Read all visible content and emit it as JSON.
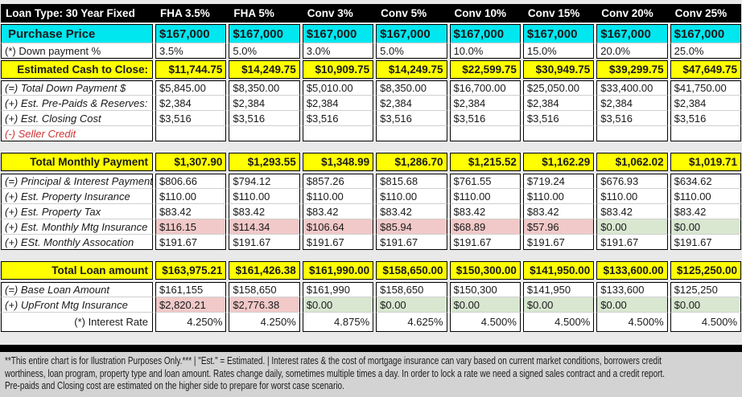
{
  "header": {
    "label": "Loan Type: 30 Year Fixed",
    "columns": [
      "FHA 3.5%",
      "FHA 5%",
      "Conv 3%",
      "Conv 5%",
      "Conv 10%",
      "Conv 15%",
      "Conv 20%",
      "Conv 25%"
    ]
  },
  "colors": {
    "header_bg": "#000000",
    "header_text": "#FFFFFF",
    "highlight_cyan": "#00E7F0",
    "highlight_yellow": "#FFFF00",
    "cell_pink": "#F1C9C8",
    "cell_green": "#D9E7D1",
    "red_label": "#CC3333"
  },
  "sections": [
    {
      "name": "price",
      "gap": 2,
      "rows": [
        {
          "id": "purchase-price",
          "label": "Purchase Price",
          "label_class": "lbl-bold",
          "row_class": "rt-cyan",
          "values": [
            "$167,000",
            "$167,000",
            "$167,000",
            "$167,000",
            "$167,000",
            "$167,000",
            "$167,000",
            "$167,000"
          ]
        },
        {
          "id": "down-payment-pct",
          "label": "(*) Down payment %",
          "label_class": "lbl-plain",
          "row_class": "rt-plain",
          "values": [
            "3.5%",
            "5.0%",
            "3.0%",
            "5.0%",
            "10.0%",
            "15.0%",
            "20.0%",
            "25.0%"
          ]
        }
      ]
    },
    {
      "name": "cash-to-close",
      "gap": 2,
      "rows": [
        {
          "id": "est-cash-to-close",
          "label": "Estimated Cash to Close:",
          "label_class": "lbl-bold-right",
          "row_class": "rt-yellow",
          "values": [
            "$11,744.75",
            "$14,249.75",
            "$10,909.75",
            "$14,249.75",
            "$22,599.75",
            "$30,949.75",
            "$39,299.75",
            "$47,649.75"
          ]
        }
      ]
    },
    {
      "name": "down-payment-detail",
      "gap": 2,
      "rows": [
        {
          "id": "total-down-payment",
          "label": "(=) Total Down Payment $",
          "label_class": "lbl-italic",
          "row_class": "rt-plain",
          "values": [
            "$5,845.00",
            "$8,350.00",
            "$5,010.00",
            "$8,350.00",
            "$16,700.00",
            "$25,050.00",
            "$33,400.00",
            "$41,750.00"
          ]
        },
        {
          "id": "est-prepaids-reserves",
          "label": "(+) Est.  Pre-Paids & Reserves:",
          "label_class": "lbl-italic",
          "row_class": "rt-plain",
          "values": [
            "$2,384",
            "$2,384",
            "$2,384",
            "$2,384",
            "$2,384",
            "$2,384",
            "$2,384",
            "$2,384"
          ]
        },
        {
          "id": "est-closing-cost",
          "label": "(+) Est. Closing Cost",
          "label_class": "lbl-italic",
          "row_class": "rt-plain",
          "values": [
            "$3,516",
            "$3,516",
            "$3,516",
            "$3,516",
            "$3,516",
            "$3,516",
            "$3,516",
            "$3,516"
          ]
        },
        {
          "id": "seller-credit",
          "label": "(-) Seller Credit",
          "label_class": "lbl-italic-red",
          "row_class": "rt-plain",
          "values": [
            "",
            "",
            "",
            "",
            "",
            "",
            "",
            ""
          ]
        }
      ]
    },
    {
      "name": "monthly-total",
      "gap": 14,
      "rows": [
        {
          "id": "total-monthly-payment",
          "label": "Total Monthly Payment",
          "label_class": "lbl-bold-right",
          "row_class": "rt-yellow",
          "values": [
            "$1,307.90",
            "$1,293.55",
            "$1,348.99",
            "$1,286.70",
            "$1,215.52",
            "$1,162.29",
            "$1,062.02",
            "$1,019.71"
          ]
        }
      ]
    },
    {
      "name": "monthly-detail",
      "gap": 3,
      "rows": [
        {
          "id": "principal-interest",
          "label": "(=) Principal & Interest Payment",
          "label_class": "lbl-italic",
          "row_class": "rt-plain",
          "values": [
            "$806.66",
            "$794.12",
            "$857.26",
            "$815.68",
            "$761.55",
            "$719.24",
            "$676.93",
            "$634.62"
          ]
        },
        {
          "id": "est-property-insurance",
          "label": "(+) Est. Property Insurance",
          "label_class": "lbl-italic",
          "row_class": "rt-plain",
          "values": [
            "$110.00",
            "$110.00",
            "$110.00",
            "$110.00",
            "$110.00",
            "$110.00",
            "$110.00",
            "$110.00"
          ]
        },
        {
          "id": "est-property-tax",
          "label": "(+) Est. Property Tax",
          "label_class": "lbl-italic",
          "row_class": "rt-plain",
          "values": [
            "$83.42",
            "$83.42",
            "$83.42",
            "$83.42",
            "$83.42",
            "$83.42",
            "$83.42",
            "$83.42"
          ]
        },
        {
          "id": "est-monthly-mtg-insurance",
          "label": "(+) Est. Monthly Mtg Insurance",
          "label_class": "lbl-italic",
          "row_class": "rt-plain",
          "cell_bgs": [
            "pink",
            "pink",
            "pink",
            "pink",
            "pink",
            "pink",
            "green",
            "green"
          ],
          "values": [
            "$116.15",
            "$114.34",
            "$106.64",
            "$85.94",
            "$68.89",
            "$57.96",
            "$0.00",
            "$0.00"
          ]
        },
        {
          "id": "est-monthly-association",
          "label": "(+) ESt. Monthly Assocation",
          "label_class": "lbl-italic",
          "row_class": "rt-plain",
          "values": [
            "$191.67",
            "$191.67",
            "$191.67",
            "$191.67",
            "$191.67",
            "$191.67",
            "$191.67",
            "$191.67"
          ]
        }
      ]
    },
    {
      "name": "loan-total",
      "gap": 14,
      "rows": [
        {
          "id": "total-loan-amount",
          "label": "Total Loan amount",
          "label_class": "lbl-bold-right",
          "row_class": "rt-yellow",
          "values": [
            "$163,975.21",
            "$161,426.38",
            "$161,990.00",
            "$158,650.00",
            "$150,300.00",
            "$141,950.00",
            "$133,600.00",
            "$125,250.00"
          ]
        }
      ]
    },
    {
      "name": "loan-detail",
      "gap": 3,
      "rows": [
        {
          "id": "base-loan-amount",
          "label": "(=) Base Loan Amount",
          "label_class": "lbl-italic",
          "row_class": "rt-plain",
          "values": [
            "$161,155",
            "$158,650",
            "$161,990",
            "$158,650",
            "$150,300",
            "$141,950",
            "$133,600",
            "$125,250"
          ]
        },
        {
          "id": "upfront-mtg-insurance",
          "label": "(+) UpFront Mtg Insurance",
          "label_class": "lbl-italic",
          "row_class": "rt-plain",
          "cell_bgs": [
            "pink",
            "pink",
            "green",
            "green",
            "green",
            "green",
            "green",
            "green"
          ],
          "values": [
            "$2,820.21",
            "$2,776.38",
            "$0.00",
            "$0.00",
            "$0.00",
            "$0.00",
            "$0.00",
            "$0.00"
          ]
        },
        {
          "id": "interest-rate",
          "label": "(*) Interest Rate",
          "label_class": "lbl-plain-right",
          "row_class": "rt-rate",
          "values": [
            "4.250%",
            "4.250%",
            "4.875%",
            "4.625%",
            "4.500%",
            "4.500%",
            "4.500%",
            "4.500%"
          ]
        }
      ]
    }
  ],
  "footer": {
    "lines": [
      "**This entire chart is for Ilustration Purposes Only.***   |  \"Est.\" = Estimated.   |   Interest rates & the cost of mortgage insurance can vary based on current market conditions, borrowers credit",
      "worthiness, loan program, property type and loan amount.   Rates change daily, sometimes multiple times a day.   In order to lock a rate we need a signed sales contract and a credit report.",
      "Pre-paids and Closing cost are estimated on the higher side to prepare for worst case scenario."
    ]
  }
}
